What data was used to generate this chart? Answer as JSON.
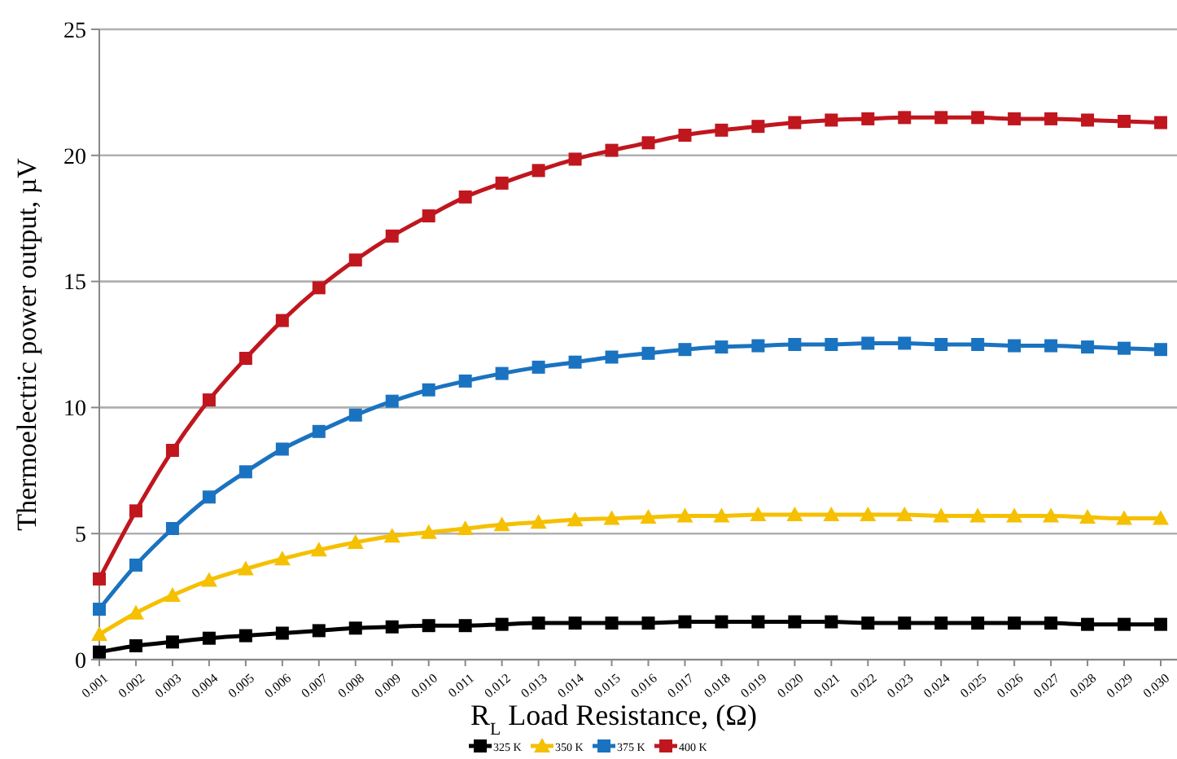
{
  "chart_data": {
    "type": "line",
    "xlabel": "R$_{L}$ Load Resistance, (Ω)",
    "ylabel": "Thermoelectric power  output, µV",
    "categories": [
      "0.001",
      "0.002",
      "0.003",
      "0.004",
      "0.005",
      "0.006",
      "0.007",
      "0.008",
      "0.009",
      "0.010",
      "0.011",
      "0.012",
      "0.013",
      "0.014",
      "0.015",
      "0.016",
      "0.017",
      "0.018",
      "0.019",
      "0.020",
      "0.021",
      "0.022",
      "0.023",
      "0.024",
      "0.025",
      "0.026",
      "0.027",
      "0.028",
      "0.029",
      "0.030"
    ],
    "series": [
      {
        "name": "325 K",
        "color": "#000000",
        "marker": "square",
        "values": [
          0.3,
          0.55,
          0.7,
          0.85,
          0.95,
          1.05,
          1.15,
          1.25,
          1.3,
          1.35,
          1.35,
          1.4,
          1.45,
          1.45,
          1.45,
          1.45,
          1.5,
          1.5,
          1.5,
          1.5,
          1.5,
          1.45,
          1.45,
          1.45,
          1.45,
          1.45,
          1.45,
          1.4,
          1.4,
          1.4
        ]
      },
      {
        "name": "350 K",
        "color": "#f5c000",
        "marker": "triangle",
        "values": [
          1.0,
          1.85,
          2.55,
          3.15,
          3.6,
          4.0,
          4.35,
          4.65,
          4.9,
          5.05,
          5.2,
          5.35,
          5.45,
          5.55,
          5.6,
          5.65,
          5.7,
          5.7,
          5.75,
          5.75,
          5.75,
          5.75,
          5.75,
          5.7,
          5.7,
          5.7,
          5.7,
          5.65,
          5.6,
          5.6
        ]
      },
      {
        "name": "375 K",
        "color": "#1a73c0",
        "marker": "square",
        "values": [
          2.0,
          3.75,
          5.2,
          6.45,
          7.45,
          8.35,
          9.05,
          9.7,
          10.25,
          10.7,
          11.05,
          11.35,
          11.6,
          11.8,
          12.0,
          12.15,
          12.3,
          12.4,
          12.45,
          12.5,
          12.5,
          12.55,
          12.55,
          12.5,
          12.5,
          12.45,
          12.45,
          12.4,
          12.35,
          12.3
        ]
      },
      {
        "name": "400 K",
        "color": "#c0161e",
        "marker": "square",
        "values": [
          3.2,
          5.9,
          8.3,
          10.3,
          11.95,
          13.45,
          14.75,
          15.85,
          16.8,
          17.6,
          18.35,
          18.9,
          19.4,
          19.85,
          20.2,
          20.5,
          20.8,
          21.0,
          21.15,
          21.3,
          21.4,
          21.45,
          21.5,
          21.5,
          21.5,
          21.45,
          21.45,
          21.4,
          21.35,
          21.3
        ]
      }
    ],
    "ylim": [
      0,
      25
    ],
    "yticks": [
      0,
      5,
      10,
      15,
      20,
      25
    ],
    "grid": "y",
    "legend": "bottom",
    "line_style": "solid"
  }
}
